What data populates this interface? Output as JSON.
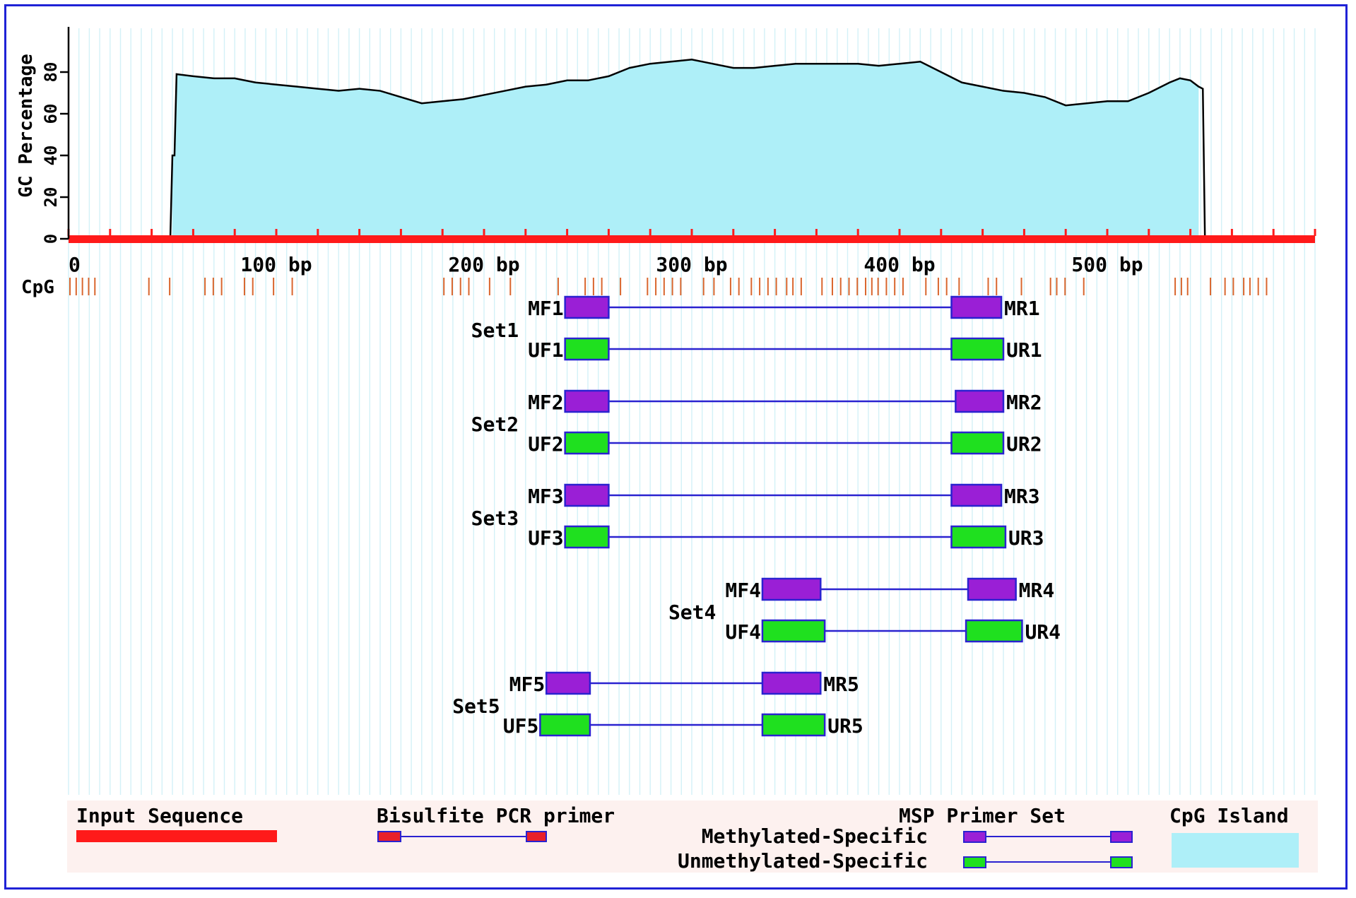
{
  "figure": {
    "y_axis_label": "GC Percentage",
    "y_ticks": [
      "0",
      "20",
      "40",
      "60",
      "80"
    ],
    "x_ticks": [
      {
        "bp": 0,
        "label": "0"
      },
      {
        "bp": 100,
        "label": "100 bp"
      },
      {
        "bp": 200,
        "label": "200 bp"
      },
      {
        "bp": 300,
        "label": "300 bp"
      },
      {
        "bp": 400,
        "label": "400 bp"
      },
      {
        "bp": 500,
        "label": "500 bp"
      }
    ],
    "cpg_label": "CpG",
    "colors": {
      "input_sequence": "#ff1a1a",
      "cpg_island": "#aeeff8",
      "cpg_tick": "#d9662e",
      "methylated_primer": "#9a1fd6",
      "unmethylated_primer": "#1fe01f",
      "primer_border": "#2a22d0",
      "bisulfite_primer": "#e8202a",
      "frame": "#1f22d6",
      "legend_bg": "#fdf1ef"
    }
  },
  "chart_data": {
    "type": "area",
    "sequence_length_bp": 600,
    "cpg_island_bp": [
      50,
      544
    ],
    "gc_profile": {
      "x": [
        0,
        49,
        50,
        51,
        52,
        60,
        70,
        80,
        90,
        100,
        110,
        120,
        130,
        140,
        150,
        160,
        170,
        180,
        190,
        200,
        210,
        220,
        230,
        240,
        250,
        260,
        270,
        280,
        290,
        300,
        310,
        320,
        330,
        340,
        350,
        360,
        370,
        380,
        390,
        400,
        410,
        420,
        430,
        440,
        450,
        460,
        470,
        480,
        490,
        500,
        510,
        520,
        530,
        535,
        540,
        544,
        546,
        547,
        548,
        600
      ],
      "y": [
        1,
        1,
        40,
        40,
        79,
        78,
        77,
        77,
        75,
        74,
        73,
        72,
        71,
        72,
        71,
        68,
        65,
        66,
        67,
        69,
        71,
        73,
        74,
        76,
        76,
        78,
        82,
        84,
        85,
        86,
        84,
        82,
        82,
        83,
        84,
        84,
        84,
        84,
        83,
        84,
        85,
        80,
        75,
        73,
        71,
        70,
        68,
        64,
        65,
        66,
        66,
        70,
        75,
        77,
        76,
        73,
        72,
        1,
        1,
        1
      ]
    },
    "cpg_positions_bp": [
      0,
      3,
      6,
      9,
      12,
      38,
      48,
      65,
      69,
      73,
      84,
      88,
      98,
      107,
      180,
      184,
      188,
      192,
      202,
      212,
      235,
      248,
      252,
      256,
      265,
      278,
      282,
      286,
      290,
      294,
      305,
      310,
      318,
      322,
      328,
      332,
      336,
      340,
      345,
      348,
      352,
      362,
      367,
      371,
      375,
      379,
      383,
      386,
      389,
      393,
      397,
      401,
      412,
      418,
      422,
      428,
      442,
      446,
      458,
      472,
      475,
      479,
      488,
      532,
      535,
      538,
      549,
      556,
      560,
      565,
      568,
      572,
      576
    ],
    "primer_sets": [
      {
        "set": "Set1",
        "methylated": {
          "forward": {
            "name": "MF1",
            "start": 239,
            "end": 260
          },
          "reverse": {
            "name": "MR1",
            "start": 425,
            "end": 449
          }
        },
        "unmethylated": {
          "forward": {
            "name": "UF1",
            "start": 239,
            "end": 260
          },
          "reverse": {
            "name": "UR1",
            "start": 425,
            "end": 450
          }
        }
      },
      {
        "set": "Set2",
        "methylated": {
          "forward": {
            "name": "MF2",
            "start": 239,
            "end": 260
          },
          "reverse": {
            "name": "MR2",
            "start": 427,
            "end": 450
          }
        },
        "unmethylated": {
          "forward": {
            "name": "UF2",
            "start": 239,
            "end": 260
          },
          "reverse": {
            "name": "UR2",
            "start": 425,
            "end": 450
          }
        }
      },
      {
        "set": "Set3",
        "methylated": {
          "forward": {
            "name": "MF3",
            "start": 239,
            "end": 260
          },
          "reverse": {
            "name": "MR3",
            "start": 425,
            "end": 449
          }
        },
        "unmethylated": {
          "forward": {
            "name": "UF3",
            "start": 239,
            "end": 260
          },
          "reverse": {
            "name": "UR3",
            "start": 425,
            "end": 451
          }
        }
      },
      {
        "set": "Set4",
        "methylated": {
          "forward": {
            "name": "MF4",
            "start": 334,
            "end": 362
          },
          "reverse": {
            "name": "MR4",
            "start": 433,
            "end": 456
          }
        },
        "unmethylated": {
          "forward": {
            "name": "UF4",
            "start": 334,
            "end": 364
          },
          "reverse": {
            "name": "UR4",
            "start": 432,
            "end": 459
          }
        }
      },
      {
        "set": "Set5",
        "methylated": {
          "forward": {
            "name": "MF5",
            "start": 230,
            "end": 251
          },
          "reverse": {
            "name": "MR5",
            "start": 334,
            "end": 362
          }
        },
        "unmethylated": {
          "forward": {
            "name": "UF5",
            "start": 227,
            "end": 251
          },
          "reverse": {
            "name": "UR5",
            "start": 334,
            "end": 364
          }
        }
      }
    ]
  },
  "legend": {
    "input_sequence": "Input Sequence",
    "bisulfite_primer": "Bisulfite PCR primer",
    "msp_primer_set": "MSP Primer Set",
    "methylated_specific": "Methylated-Specific",
    "unmethylated_specific": "Unmethylated-Specific",
    "cpg_island": "CpG Island"
  }
}
